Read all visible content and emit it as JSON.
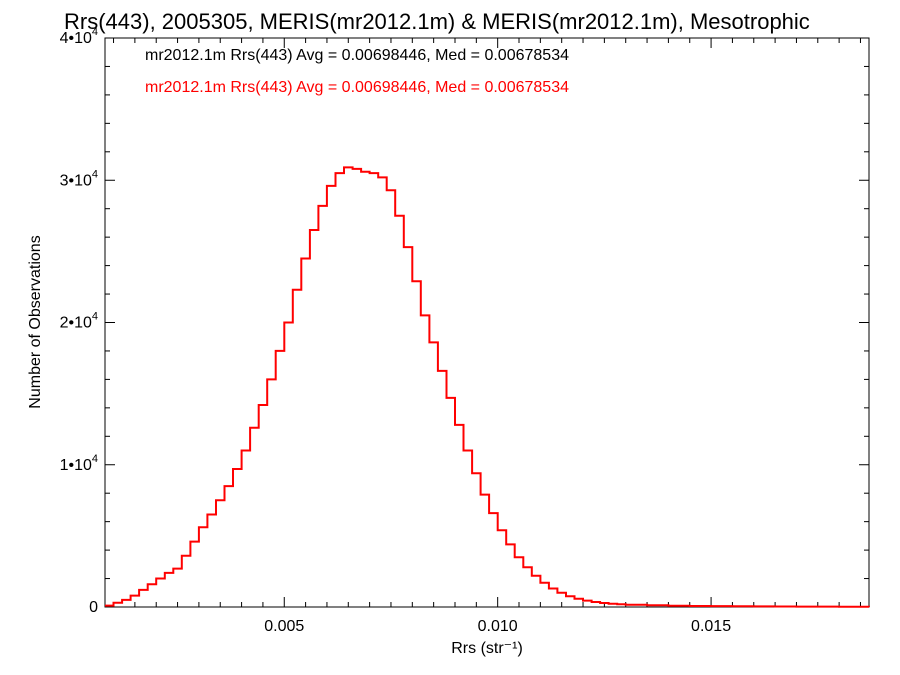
{
  "chart_data": {
    "type": "line",
    "title": "Rrs(443), 2005305, MERIS(mr2012.1m) & MERIS(mr2012.1m), Mesotrophic",
    "xlabel": "Rrs (str⁻¹)",
    "ylabel": "Number of Observations",
    "xlim": [
      0.0008,
      0.0187
    ],
    "ylim": [
      0,
      40000
    ],
    "x_ticks": [
      0.005,
      0.01,
      0.015
    ],
    "x_tick_labels": [
      "0.005",
      "0.010",
      "0.015"
    ],
    "y_ticks": [
      0,
      10000,
      20000,
      30000,
      40000
    ],
    "y_tick_labels": [
      {
        "base": "0",
        "exp": ""
      },
      {
        "base": "1•10",
        "exp": "4"
      },
      {
        "base": "2•10",
        "exp": "4"
      },
      {
        "base": "3•10",
        "exp": "4"
      },
      {
        "base": "4•10",
        "exp": "4"
      }
    ],
    "grid": false,
    "annotations": [
      {
        "text": "mr2012.1m Rrs(443) Avg = 0.00698446, Med = 0.00678534",
        "color": "#000000"
      },
      {
        "text": "mr2012.1m Rrs(443) Avg = 0.00698446, Med = 0.00678534",
        "color": "#ff0000"
      }
    ],
    "series": [
      {
        "style": "step",
        "color": "#ff0000",
        "x": [
          0.0008,
          0.001,
          0.0012,
          0.0014,
          0.0016,
          0.0018,
          0.002,
          0.0022,
          0.0024,
          0.0026,
          0.0028,
          0.003,
          0.0032,
          0.0034,
          0.0036,
          0.0038,
          0.004,
          0.0042,
          0.0044,
          0.0046,
          0.0048,
          0.005,
          0.0052,
          0.0054,
          0.0056,
          0.0058,
          0.006,
          0.0062,
          0.0064,
          0.0066,
          0.0068,
          0.007,
          0.0072,
          0.0074,
          0.0076,
          0.0078,
          0.008,
          0.0082,
          0.0084,
          0.0086,
          0.0088,
          0.009,
          0.0092,
          0.0094,
          0.0096,
          0.0098,
          0.01,
          0.0102,
          0.0104,
          0.0106,
          0.0108,
          0.011,
          0.0112,
          0.0114,
          0.0116,
          0.0118,
          0.012,
          0.0122,
          0.0124,
          0.0126,
          0.0128,
          0.013,
          0.0135,
          0.014,
          0.0145,
          0.015,
          0.0155,
          0.016,
          0.0165,
          0.017,
          0.0175,
          0.018,
          0.0187
        ],
        "y": [
          100,
          300,
          500,
          800,
          1200,
          1600,
          2000,
          2400,
          2700,
          3600,
          4600,
          5600,
          6500,
          7500,
          8500,
          9700,
          11000,
          12600,
          14200,
          16000,
          18000,
          20000,
          22300,
          24500,
          26500,
          28200,
          29600,
          30500,
          30900,
          30800,
          30600,
          30500,
          30200,
          29300,
          27500,
          25300,
          22900,
          20500,
          18600,
          16600,
          14700,
          12800,
          11000,
          9400,
          7900,
          6600,
          5400,
          4400,
          3500,
          2800,
          2200,
          1700,
          1300,
          1000,
          750,
          580,
          450,
          350,
          280,
          230,
          190,
          160,
          120,
          90,
          70,
          60,
          50,
          40,
          35,
          30,
          25,
          20,
          15
        ]
      }
    ]
  }
}
